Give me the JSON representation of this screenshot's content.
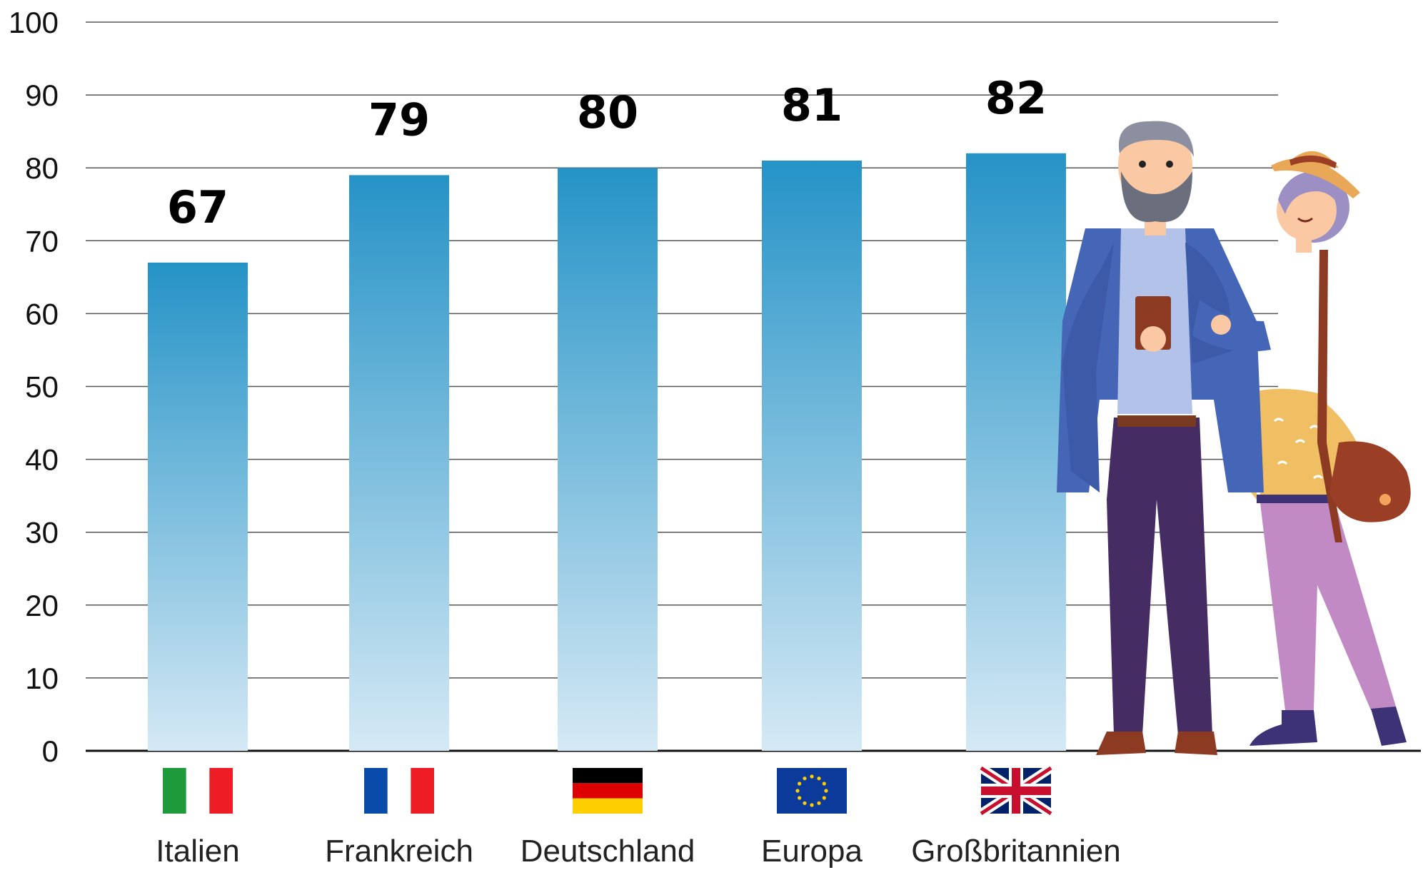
{
  "chart_data": {
    "type": "bar",
    "title": "",
    "xlabel": "",
    "ylabel": "",
    "ylim": [
      0,
      100
    ],
    "yticks": [
      0,
      10,
      20,
      30,
      40,
      50,
      60,
      70,
      80,
      90,
      100
    ],
    "grid": true,
    "categories": [
      "Italien",
      "Frankreich",
      "Deutschland",
      "Europa",
      "Großbritannien"
    ],
    "values": [
      67,
      79,
      80,
      81,
      82
    ],
    "data_labels": [
      "67",
      "79",
      "80",
      "81",
      "82"
    ],
    "flags": [
      "italy-flag-icon",
      "france-flag-icon",
      "germany-flag-icon",
      "eu-flag-icon",
      "uk-flag-icon"
    ],
    "bar_color_top": "#2593c7",
    "bar_color_bottom": "#d5e9f5"
  },
  "illustration": "elderly-couple-illustration"
}
